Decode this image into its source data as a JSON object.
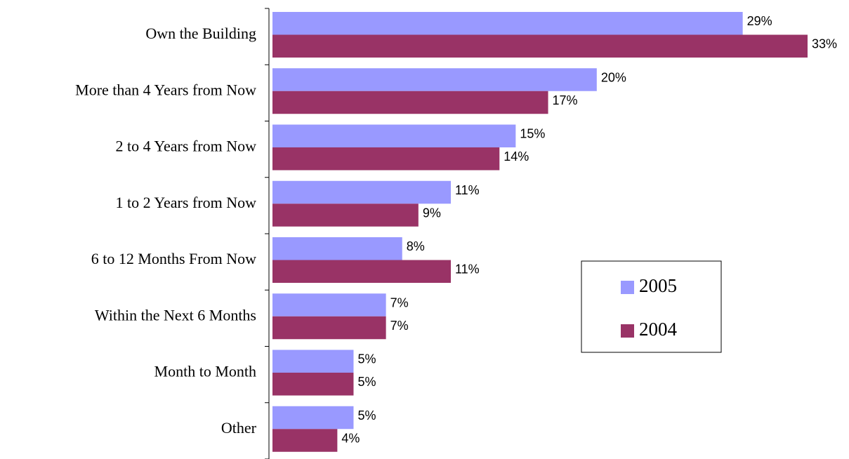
{
  "chart_data": {
    "type": "hbar",
    "categories": [
      "Own the Building",
      "More than 4 Years from Now",
      "2 to 4 Years from Now",
      "1 to 2 Years from Now",
      "6 to 12 Months From Now",
      "Within the Next 6 Months",
      "Month to Month",
      "Other"
    ],
    "series": [
      {
        "name": "2005",
        "color": "#9999ff",
        "values": [
          29,
          20,
          15,
          11,
          8,
          7,
          5,
          5
        ],
        "value_labels": [
          "29%",
          "20%",
          "15%",
          "11%",
          "8%",
          "7%",
          "5%",
          "5%"
        ]
      },
      {
        "name": "2004",
        "color": "#993366",
        "values": [
          33,
          17,
          14,
          9,
          11,
          7,
          5,
          4
        ],
        "value_labels": [
          "33%",
          "17%",
          "14%",
          "9%",
          "11%",
          "7%",
          "5%",
          "4%"
        ]
      }
    ],
    "legend": "lower right"
  }
}
